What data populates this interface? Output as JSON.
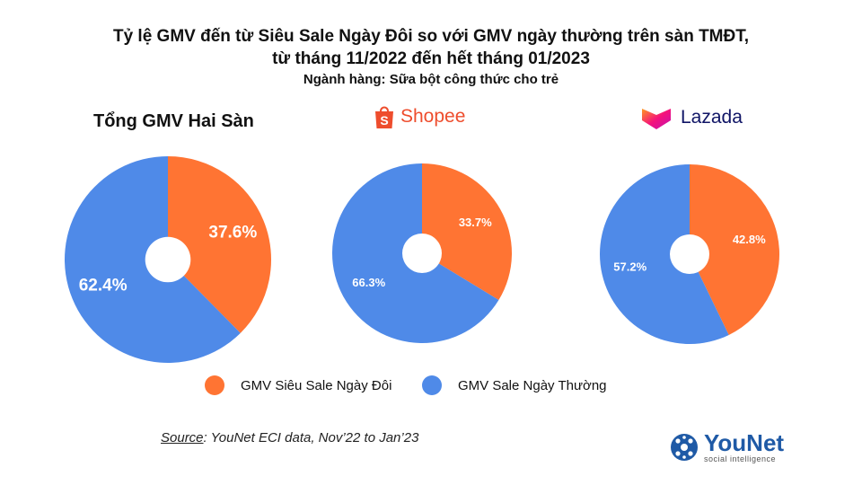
{
  "header": {
    "title_line1": "Tỷ lệ GMV đến từ Siêu Sale Ngày Đôi so với GMV ngày thường trên sàn TMĐT,",
    "title_line2": "từ tháng 11/2022 đến hết tháng 01/2023",
    "subtitle": "Ngành hàng: Sữa bột công thức cho trẻ"
  },
  "colors": {
    "double_day": "#ff7433",
    "normal_day": "#4f8ae8",
    "shopee": "#ee4d2d",
    "lazada_text": "#101566",
    "brand": "#1f5aa6"
  },
  "panels": {
    "total_label": "Tổng GMV Hai Sàn",
    "shopee_label": "Shopee",
    "lazada_label": "Lazada"
  },
  "chart_data": [
    {
      "type": "pie",
      "title": "Tổng GMV Hai Sàn",
      "categories": [
        "GMV Siêu Sale Ngày Đôi",
        "GMV Sale Ngày Thường"
      ],
      "values": [
        37.6,
        62.4
      ],
      "labels": [
        "37.6%",
        "62.4%"
      ]
    },
    {
      "type": "pie",
      "title": "Shopee",
      "categories": [
        "GMV Siêu Sale Ngày Đôi",
        "GMV Sale Ngày Thường"
      ],
      "values": [
        33.7,
        66.3
      ],
      "labels": [
        "33.7%",
        "66.3%"
      ]
    },
    {
      "type": "pie",
      "title": "Lazada",
      "categories": [
        "GMV Siêu Sale Ngày Đôi",
        "GMV Sale Ngày Thường"
      ],
      "values": [
        42.8,
        57.2
      ],
      "labels": [
        "42.8%",
        "57.2%"
      ]
    }
  ],
  "legend": {
    "item1": "GMV Siêu Sale Ngày Đôi",
    "item2": "GMV Sale Ngày Thường"
  },
  "source": {
    "label": "Source",
    "text": ": YouNet ECI data, Nov’22 to Jan’23"
  },
  "brand": {
    "name": "YouNet",
    "tagline": "social intelligence",
    "icon": "younet-logo-icon"
  }
}
